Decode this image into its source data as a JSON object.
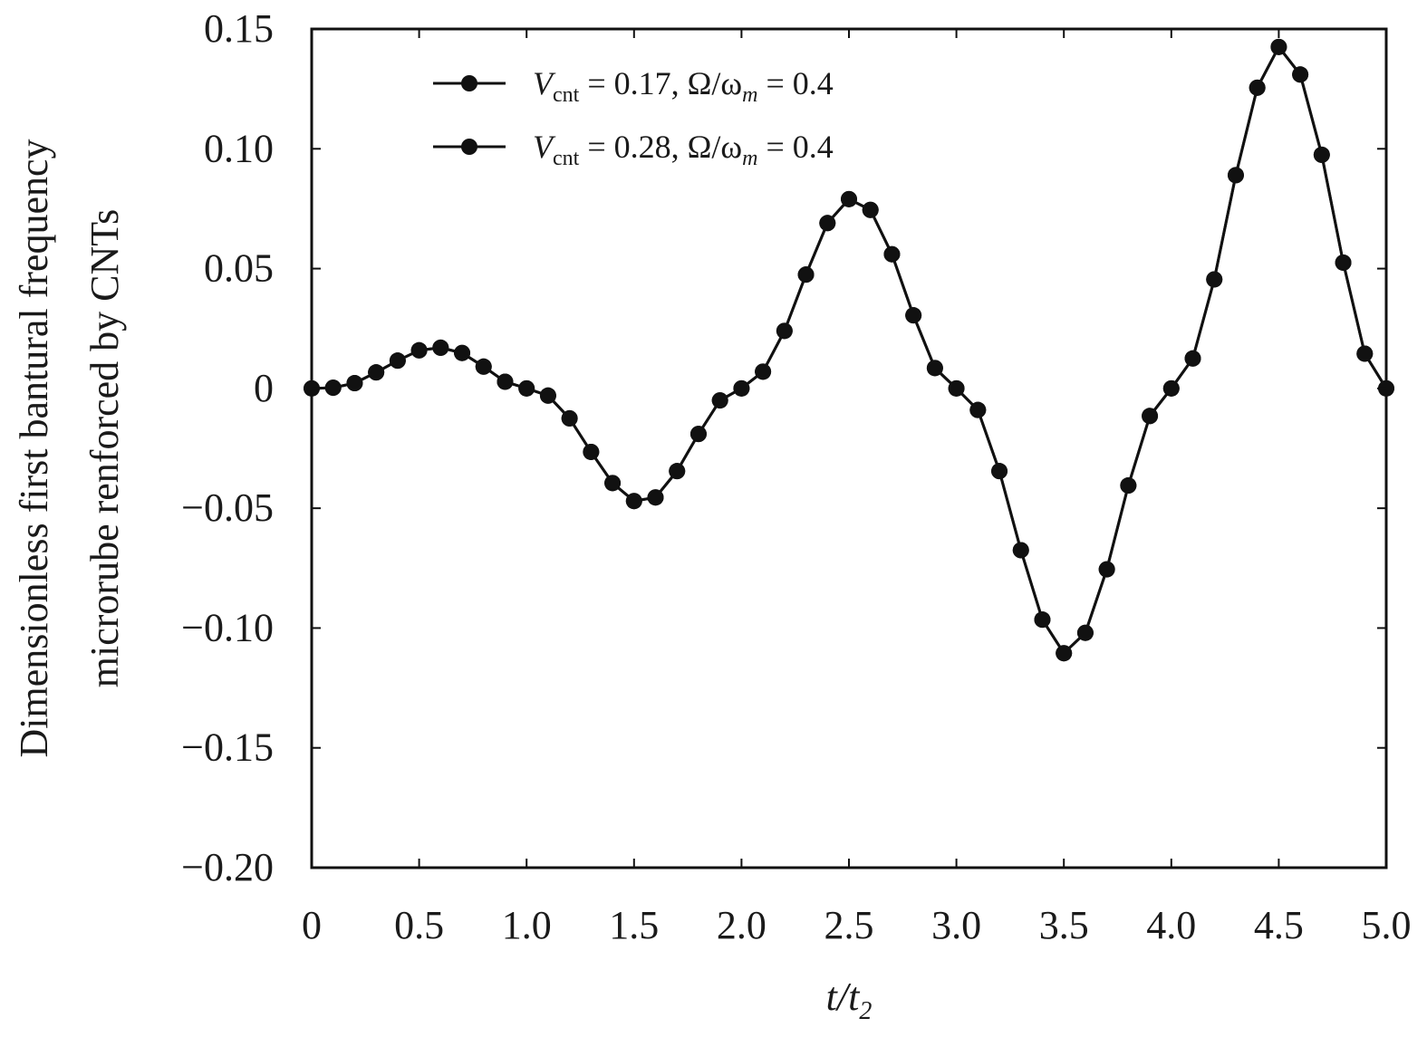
{
  "chart_data": {
    "type": "line",
    "xlabel": "t/t2",
    "xlabel_parts": {
      "base": "t/t",
      "sub": "2"
    },
    "ylabel_lines": [
      "Dimensionless first bantural frequency",
      "microrube renforced by CNTs"
    ],
    "xlim": [
      0,
      5.0
    ],
    "ylim": [
      -0.2,
      0.15
    ],
    "x_ticks": [
      0,
      0.5,
      1.0,
      1.5,
      2.0,
      2.5,
      3.0,
      3.5,
      4.0,
      4.5,
      5.0
    ],
    "x_tick_labels": [
      "0",
      "0.5",
      "1.0",
      "1.5",
      "2.0",
      "2.5",
      "3.0",
      "3.5",
      "4.0",
      "4.5",
      "5.0"
    ],
    "y_ticks": [
      0.15,
      0.1,
      0.05,
      0,
      -0.05,
      -0.1,
      -0.15,
      -0.2
    ],
    "y_tick_labels": [
      "0.15",
      "0.10",
      "0.05",
      "0",
      "−0.05",
      "−0.10",
      "−0.15",
      "−0.20"
    ],
    "grid": false,
    "legend_position": "top-left",
    "legend": [
      {
        "v": "V",
        "sub": "cnt",
        "rest": " = 0.17, Ω/ω",
        "sub2": "m",
        "tail": " = 0.4"
      },
      {
        "v": "V",
        "sub": "cnt",
        "rest": " = 0.28, Ω/ω",
        "sub2": "m",
        "tail": " = 0.4"
      }
    ],
    "line_color": "#111111",
    "x": [
      0,
      0.1,
      0.2,
      0.3,
      0.4,
      0.5,
      0.6,
      0.7,
      0.8,
      0.9,
      1.0,
      1.1,
      1.2,
      1.3,
      1.4,
      1.5,
      1.6,
      1.7,
      1.8,
      1.9,
      2.0,
      2.1,
      2.2,
      2.3,
      2.4,
      2.5,
      2.6,
      2.7,
      2.8,
      2.9,
      3.0,
      3.1,
      3.2,
      3.3,
      3.4,
      3.5,
      3.6,
      3.7,
      3.8,
      3.9,
      4.0,
      4.1,
      4.2,
      4.3,
      4.4,
      4.5,
      4.6,
      4.7,
      4.8,
      4.9,
      5.0
    ],
    "series": [
      {
        "values": [
          0,
          0.0003,
          0.0022,
          0.0067,
          0.0116,
          0.0159,
          0.017,
          0.0148,
          0.0091,
          0.0028,
          0.0,
          -0.003,
          -0.0125,
          -0.0265,
          -0.0395,
          -0.047,
          -0.0455,
          -0.0345,
          -0.019,
          -0.005,
          0.0,
          0.007,
          0.024,
          0.0475,
          0.069,
          0.079,
          0.0745,
          0.056,
          0.0305,
          0.0085,
          0.0,
          -0.009,
          -0.0345,
          -0.0675,
          -0.0965,
          -0.1105,
          -0.102,
          -0.0755,
          -0.0405,
          -0.0115,
          0.0,
          0.0125,
          0.0455,
          0.089,
          0.1255,
          0.1425,
          0.131,
          0.0975,
          0.0525,
          0.0145,
          0.0
        ]
      },
      {
        "values": [
          0,
          0.0003,
          0.0022,
          0.0067,
          0.0116,
          0.0159,
          0.017,
          0.0148,
          0.0091,
          0.0028,
          0.0,
          -0.003,
          -0.0125,
          -0.0265,
          -0.0395,
          -0.047,
          -0.0455,
          -0.0345,
          -0.019,
          -0.005,
          0.0,
          0.007,
          0.024,
          0.0475,
          0.069,
          0.079,
          0.0745,
          0.056,
          0.0305,
          0.0085,
          0.0,
          -0.009,
          -0.0345,
          -0.0675,
          -0.0965,
          -0.1105,
          -0.102,
          -0.0755,
          -0.0405,
          -0.0115,
          0.0,
          0.0125,
          0.0455,
          0.089,
          0.1255,
          0.1425,
          0.131,
          0.0975,
          0.0525,
          0.0145,
          0.0
        ]
      }
    ]
  }
}
